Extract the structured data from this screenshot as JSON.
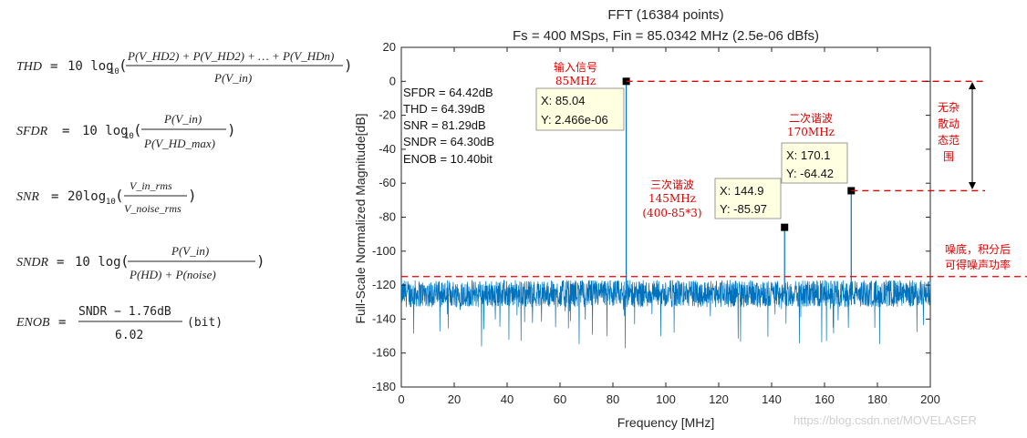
{
  "formulas": {
    "thd": {
      "lhs": "THD",
      "eq": "=",
      "pre": "10 log",
      "sub": "10",
      "num": "P(V_HD2) + P(V_HD2) + … + P(V_HDn)",
      "den": "P(V_in)"
    },
    "sfdr": {
      "lhs": "SFDR",
      "eq": "=",
      "pre": "10 log",
      "sub": "10",
      "num": "P(V_in)",
      "den": "P(V_HD_max)"
    },
    "snr": {
      "lhs": "SNR",
      "eq": "=",
      "pre": "20log",
      "sub": "10",
      "num": "V_in_rms",
      "den": "V_noise_rms"
    },
    "sndr": {
      "lhs": "SNDR",
      "eq": "=",
      "pre": "10 log",
      "num": "P(V_in)",
      "den": "P(HD) + P(noise)"
    },
    "enob": {
      "lhs": "ENOB",
      "eq": "=",
      "num": "SNDR − 1.76dB",
      "den": "6.02",
      "unit": "(bit)"
    }
  },
  "chart_data": {
    "type": "line",
    "title": "FFT (16384 points)",
    "subtitle": "Fs = 400 MSps, Fin = 85.0342 MHz (2.5e-06 dBfs)",
    "xlabel": "Frequency [MHz]",
    "ylabel": "Full-Scale Normalized Magnitude[dB]",
    "xlim": [
      0,
      200
    ],
    "ylim": [
      -180,
      20
    ],
    "xticks": [
      "0",
      "20",
      "40",
      "60",
      "80",
      "100",
      "120",
      "140",
      "160",
      "180",
      "200"
    ],
    "yticks": [
      "20",
      "0",
      "-20",
      "-40",
      "-60",
      "-80",
      "-100",
      "-120",
      "-140",
      "-160",
      "-180"
    ],
    "noise_floor_db": -125,
    "series_color": "#0072bd",
    "peaks": [
      {
        "x": 85.04,
        "y": 0
      },
      {
        "x": 144.9,
        "y": -85.97
      },
      {
        "x": 170.1,
        "y": -64.42
      }
    ],
    "stats": [
      "SFDR = 64.42dB",
      "THD = 64.39dB",
      "SNR = 81.29dB",
      "SNDR = 64.30dB",
      "ENOB = 10.40bit"
    ],
    "datatips": [
      {
        "line1": "X: 85.04",
        "line2": "Y: 2.466e-06"
      },
      {
        "line1": "X: 144.9",
        "line2": "Y: -85.97"
      },
      {
        "line1": "X: 170.1",
        "line2": "Y: -64.42"
      }
    ],
    "ref_lines_db": [
      0,
      -64.42,
      -115
    ],
    "annotations": {
      "input_l1": "输入信号",
      "input_l2": "85MHz",
      "h3_l1": "三次谐波",
      "h3_l2": "145MHz",
      "h3_l3": "(400-85*3)",
      "h2_l1": "二次谐波",
      "h2_l2": "170MHz",
      "sfdr_l1": "无杂",
      "sfdr_l2": "散动",
      "sfdr_l3": "态范",
      "sfdr_l4": "围",
      "noise_l1": "噪底，积分后",
      "noise_l2": "可得噪声功率"
    }
  },
  "watermark": "https://blog.csdn.net/MOVELASER"
}
